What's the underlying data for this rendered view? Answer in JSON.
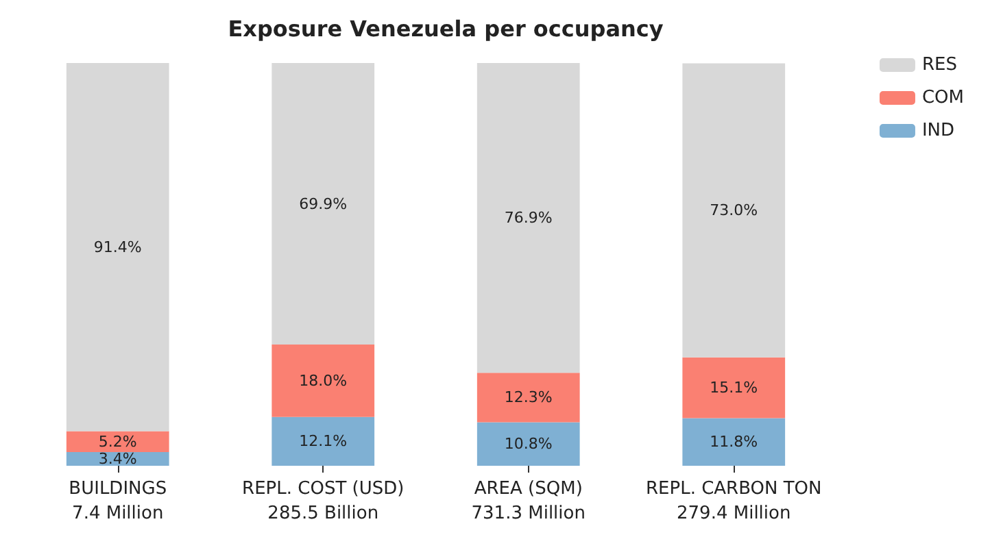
{
  "chart_data": {
    "type": "bar",
    "title": "Exposure Venezuela per occupancy",
    "stacked": true,
    "categories": [
      "BUILDINGS\n7.4 Million",
      "REPL. COST (USD)\n285.5 Billion",
      "AREA (SQM)\n731.3 Million",
      "REPL. CARBON TON\n279.4 Million"
    ],
    "series": [
      {
        "name": "IND",
        "color": "#7fb0d3",
        "values": [
          3.4,
          12.1,
          10.8,
          11.8
        ],
        "value_labels": [
          "3.4%",
          "12.1%",
          "10.8%",
          "11.8%"
        ]
      },
      {
        "name": "COM",
        "color": "#fa8072",
        "values": [
          5.2,
          18.0,
          12.3,
          15.1
        ],
        "value_labels": [
          "5.2%",
          "18.0%",
          "12.3%",
          "15.1%"
        ]
      },
      {
        "name": "RES",
        "color": "#d8d8d8",
        "values": [
          91.4,
          69.9,
          76.9,
          73.0
        ],
        "value_labels": [
          "91.4%",
          "69.9%",
          "76.9%",
          "73.0%"
        ]
      }
    ],
    "legend": "top right"
  }
}
